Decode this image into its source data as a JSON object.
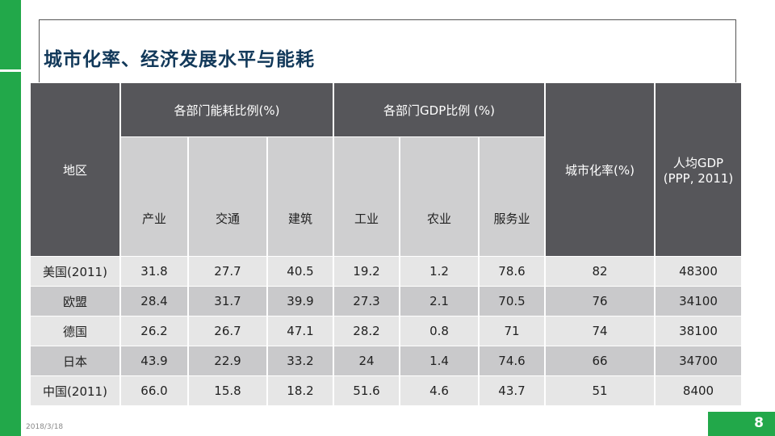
{
  "title": "城市化率、经济发展水平与能耗",
  "date": "2018/3/18",
  "page_number": "8",
  "table": {
    "region_header": "地区",
    "energy_group": "各部门能耗比例(%)",
    "gdp_group": "各部门GDP比例 (%)",
    "urbanization_header": "城市化率(%)",
    "gdp_pc_header_line1": "人均GDP",
    "gdp_pc_header_line2": "(PPP, 2011)",
    "energy_cols": [
      "产业",
      "交通",
      "建筑"
    ],
    "gdp_cols": [
      "工业",
      "农业",
      "服务业"
    ],
    "rows": [
      {
        "region": "美国(2011)",
        "values": [
          "31.8",
          "27.7",
          "40.5",
          "19.2",
          "1.2",
          "78.6",
          "82",
          "48300"
        ]
      },
      {
        "region": "欧盟",
        "values": [
          "28.4",
          "31.7",
          "39.9",
          "27.3",
          "2.1",
          "70.5",
          "76",
          "34100"
        ]
      },
      {
        "region": "德国",
        "values": [
          "26.2",
          "26.7",
          "47.1",
          "28.2",
          "0.8",
          "71",
          "74",
          "38100"
        ]
      },
      {
        "region": "日本",
        "values": [
          "43.9",
          "22.9",
          "33.2",
          "24",
          "1.4",
          "74.6",
          "66",
          "34700"
        ]
      },
      {
        "region": "中国(2011)",
        "values": [
          "66.0",
          "15.8",
          "18.2",
          "51.6",
          "4.6",
          "43.7",
          "51",
          "8400"
        ]
      }
    ]
  }
}
